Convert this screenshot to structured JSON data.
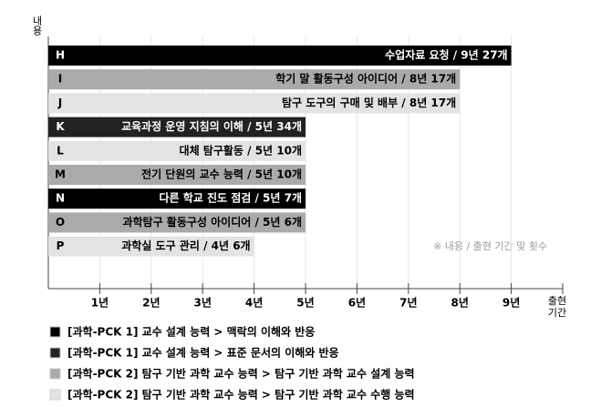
{
  "chart_data": {
    "type": "hbar",
    "y_label": "내용",
    "x_label": "출현 기간",
    "note": "※ 내용 / 출현 기간 및 횟수",
    "categories": [
      "H",
      "I",
      "J",
      "K",
      "L",
      "M",
      "N",
      "O",
      "P"
    ],
    "values": [
      9,
      8,
      8,
      5,
      5,
      5,
      5,
      5,
      4
    ],
    "value_labels": [
      "수업자료 요청 / 9년 27개",
      "학기 말 활동구성 아이디어 / 8년 17개",
      "탐구 도구의 구매 및 배부 / 8년 17개",
      "교육과정 운영 지침의 이해 / 5년 34개",
      "대체 탐구활동 / 5년 10개",
      "전기 단원의 교수 능력 / 5년 10개",
      "다른 학교 진도 점검 / 5년 7개",
      "과학탐구 활동구성 아이디어 / 5년 6개",
      "과학실 도구 관리 / 4년 6개"
    ],
    "bar_groups": [
      0,
      2,
      3,
      1,
      3,
      2,
      0,
      2,
      3
    ],
    "legend": [
      {
        "name": "[과학-PCK 1] 교수 설계 능력 > 맥락의 이해와 반응",
        "color": "#000000"
      },
      {
        "name": "[과학-PCK 1] 교수 설계 능력 > 표준 문서의 이해와 반응",
        "color": "#222222"
      },
      {
        "name": "[과학-PCK 2] 탐구 기반 과학 교수 능력 > 탐구 기반 과학 교수 설계 능력",
        "color": "#aaaaaa"
      },
      {
        "name": "[과학-PCK 2] 탐구 기반 과학 교수 능력 > 탐구 기반 과학 교수 수행 능력",
        "color": "#e3e3e3"
      }
    ],
    "xlim": [
      0,
      10
    ],
    "xticks": [
      {
        "value": 1,
        "label": "1년"
      },
      {
        "value": 2,
        "label": "2년"
      },
      {
        "value": 3,
        "label": "3년"
      },
      {
        "value": 4,
        "label": "4년"
      },
      {
        "value": 5,
        "label": "5년"
      },
      {
        "value": 6,
        "label": "6년"
      },
      {
        "value": 7,
        "label": "7년"
      },
      {
        "value": 8,
        "label": "8년"
      },
      {
        "value": 9,
        "label": "9년"
      }
    ],
    "grid": true
  }
}
